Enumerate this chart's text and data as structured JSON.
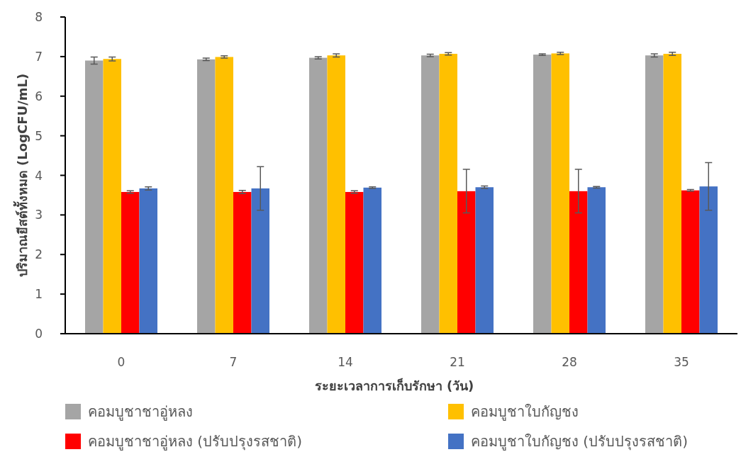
{
  "chart_data": {
    "type": "bar",
    "xlabel": "ระยะเวลาการเก็บรักษา (วัน)",
    "ylabel": "ปริมาณยีสต์ทั้งหมด (LogCFU/mL)",
    "categories": [
      "0",
      "7",
      "14",
      "21",
      "28",
      "35"
    ],
    "series": [
      {
        "name": "คอมบูชาชาอู่หลง",
        "color": "#a5a5a5",
        "values": [
          6.9,
          6.93,
          6.97,
          7.03,
          7.05,
          7.03
        ],
        "errors": [
          0.09,
          0.03,
          0.03,
          0.03,
          0.02,
          0.04
        ]
      },
      {
        "name": "คอมบูชาใบกัญชง",
        "color": "#ffc000",
        "values": [
          6.94,
          6.99,
          7.03,
          7.07,
          7.08,
          7.07
        ],
        "errors": [
          0.05,
          0.03,
          0.04,
          0.03,
          0.03,
          0.04
        ]
      },
      {
        "name": "คอมบูชาชาอู่หลง (ปรับปรุงรสชาติ)",
        "color": "#ff0000",
        "values": [
          3.58,
          3.58,
          3.58,
          3.6,
          3.6,
          3.62
        ],
        "errors": [
          0.03,
          0.04,
          0.03,
          0.55,
          0.55,
          0.02
        ]
      },
      {
        "name": "คอมบูชาใบกัญชง (ปรับปรุงรสชาติ)",
        "color": "#4472c4",
        "values": [
          3.67,
          3.67,
          3.69,
          3.7,
          3.7,
          3.72
        ],
        "errors": [
          0.04,
          0.55,
          0.02,
          0.03,
          0.02,
          0.6
        ]
      }
    ],
    "ylim": [
      0,
      8
    ],
    "yticks": [
      0,
      1,
      2,
      3,
      4,
      5,
      6,
      7,
      8
    ],
    "legend": "bottom"
  }
}
